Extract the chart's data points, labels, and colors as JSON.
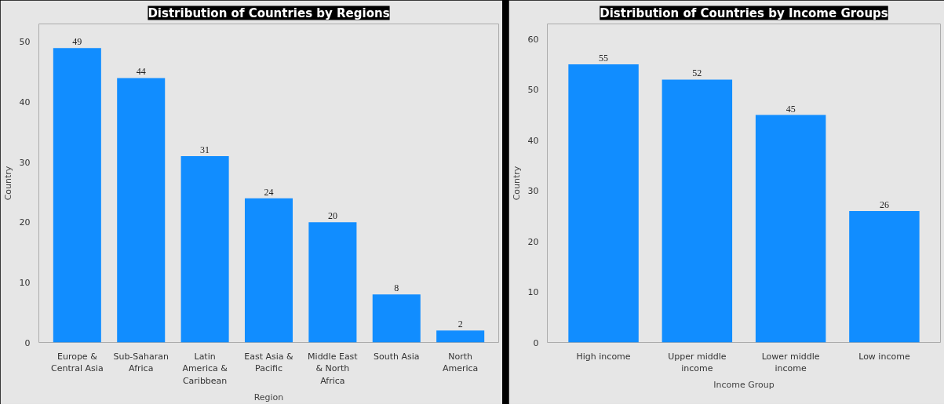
{
  "chart_data": [
    {
      "type": "bar",
      "title": "Distribution of Countries by Regions",
      "xlabel": "Region",
      "ylabel": "Country",
      "categories": [
        "Europe & Central Asia",
        "Sub-Saharan Africa",
        "Latin America & Caribbean",
        "East Asia & Pacific",
        "Middle East & North Africa",
        "South Asia",
        "North America"
      ],
      "values": [
        49,
        44,
        31,
        24,
        20,
        8,
        2
      ],
      "color": "#118dff",
      "ylim": [
        0,
        53
      ],
      "yticks": [
        0,
        10,
        20,
        30,
        40,
        50
      ],
      "grid": false,
      "data_labels": true
    },
    {
      "type": "bar",
      "title": "Distribution of Countries by Income Groups",
      "xlabel": "Income Group",
      "ylabel": "Country",
      "categories": [
        "High income",
        "Upper middle income",
        "Lower middle income",
        "Low income"
      ],
      "values": [
        55,
        52,
        45,
        26
      ],
      "color": "#118dff",
      "ylim": [
        0,
        63
      ],
      "yticks": [
        0,
        10,
        20,
        30,
        40,
        50,
        60
      ],
      "grid": false,
      "data_labels": true
    }
  ]
}
